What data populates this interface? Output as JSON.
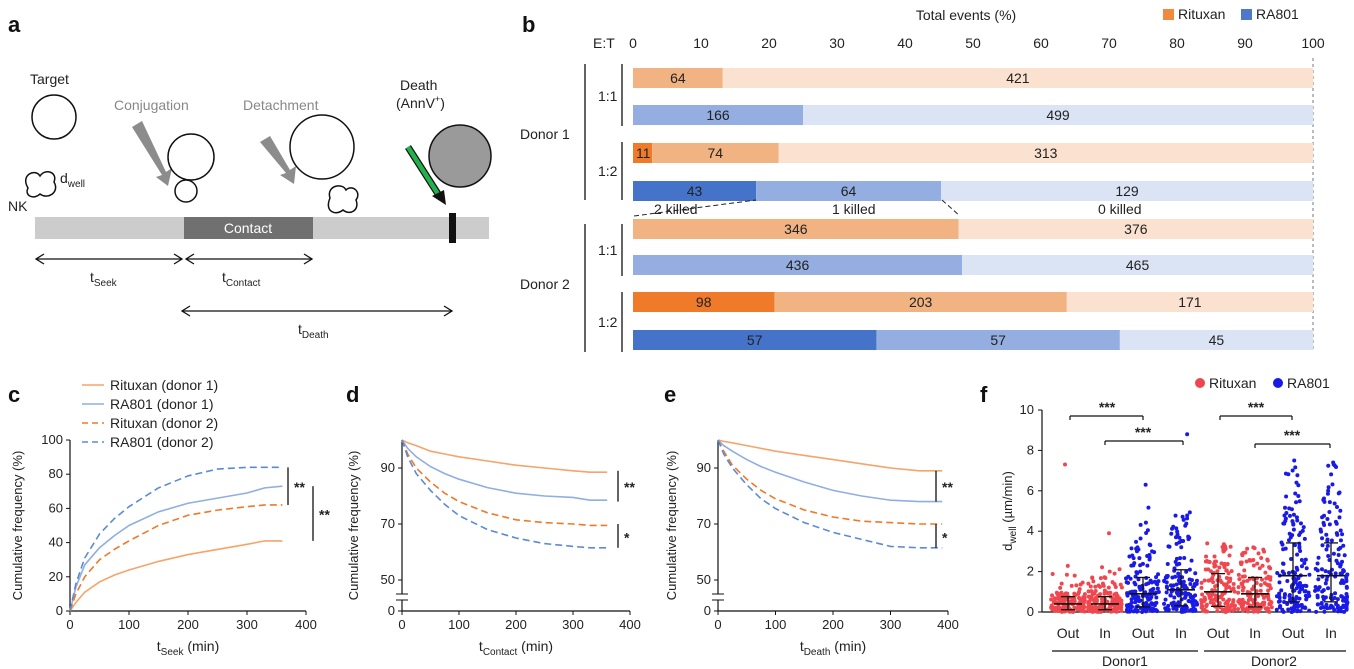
{
  "panels": [
    "a",
    "b",
    "c",
    "d",
    "e",
    "f"
  ],
  "schematic": {
    "target": "Target",
    "conjugation": "Conjugation",
    "detachment": "Detachment",
    "death_line1": "Death",
    "death_line2": "(AnnV",
    "death_sup": "+",
    "death_close": ")",
    "nk": "NK",
    "dwell_main": "d",
    "dwell_sub": "well",
    "contact": "Contact",
    "t_main": "t",
    "t_seek_sub": "Seek",
    "t_contact_sub": "Contact",
    "t_death_sub": "Death",
    "colors": {
      "bar": "#cccccc",
      "contact": "#707070",
      "arrow_gray": "#8c8c8c",
      "arrow_green": "#22b14c",
      "dead_cell": "#9a9a9a"
    }
  },
  "chart_b": {
    "title": "Total events (%)",
    "et_label": "E:T",
    "legend": [
      {
        "name": "Rituxan",
        "color": "#ef8a3e"
      },
      {
        "name": "RA801",
        "color": "#4f78c8"
      }
    ],
    "ticks": [
      "0",
      "10",
      "20",
      "30",
      "40",
      "50",
      "60",
      "70",
      "80",
      "90",
      "100"
    ],
    "donors": [
      "Donor 1",
      "Donor 2"
    ],
    "ratios": [
      "1:1",
      "1:2",
      "1:1",
      "1:2"
    ],
    "killed_labels": [
      "2 killed",
      "1 killed",
      "0 killed"
    ],
    "rows": [
      {
        "group": "Rituxan",
        "segments": [
          {
            "value": 64,
            "share": 13.2,
            "shade": "mid"
          },
          {
            "value": 421,
            "share": 86.8,
            "shade": "light"
          }
        ]
      },
      {
        "group": "RA801",
        "segments": [
          {
            "value": 166,
            "share": 25.0,
            "shade": "mid"
          },
          {
            "value": 499,
            "share": 75.0,
            "shade": "light"
          }
        ]
      },
      {
        "group": "Rituxan",
        "segments": [
          {
            "value": 11,
            "share": 2.8,
            "shade": "dark"
          },
          {
            "value": 74,
            "share": 18.6,
            "shade": "mid"
          },
          {
            "value": 313,
            "share": 78.6,
            "shade": "light"
          }
        ]
      },
      {
        "group": "RA801",
        "segments": [
          {
            "value": 43,
            "share": 18.1,
            "shade": "dark"
          },
          {
            "value": 64,
            "share": 27.2,
            "shade": "mid"
          },
          {
            "value": 129,
            "share": 54.7,
            "shade": "light"
          }
        ]
      },
      {
        "group": "Rituxan",
        "segments": [
          {
            "value": 346,
            "share": 47.9,
            "shade": "mid"
          },
          {
            "value": 376,
            "share": 52.1,
            "shade": "light"
          }
        ]
      },
      {
        "group": "RA801",
        "segments": [
          {
            "value": 436,
            "share": 48.4,
            "shade": "mid"
          },
          {
            "value": 465,
            "share": 51.6,
            "shade": "light"
          }
        ]
      },
      {
        "group": "Rituxan",
        "segments": [
          {
            "value": 98,
            "share": 20.8,
            "shade": "dark"
          },
          {
            "value": 203,
            "share": 43.0,
            "shade": "mid"
          },
          {
            "value": 171,
            "share": 36.2,
            "shade": "light"
          }
        ]
      },
      {
        "group": "RA801",
        "segments": [
          {
            "value": 57,
            "share": 35.8,
            "shade": "dark"
          },
          {
            "value": 57,
            "share": 35.8,
            "shade": "mid"
          },
          {
            "value": 45,
            "share": 28.4,
            "shade": "light"
          }
        ]
      }
    ]
  },
  "legend_cde": [
    {
      "name": "Rituxan (donor 1)",
      "color": "#f5a46a",
      "dash": false
    },
    {
      "name": "RA801 (donor 1)",
      "color": "#8faee3",
      "dash": false
    },
    {
      "name": "Rituxan (donor 2)",
      "color": "#ee7a28",
      "dash": true
    },
    {
      "name": "RA801 (donor 2)",
      "color": "#5b8ad6",
      "dash": true
    }
  ],
  "chart_data": [
    {
      "type": "line",
      "id": "c",
      "ylabel": "Cumulative frequency (%)",
      "xlabel_main": "t",
      "xlabel_sub": "Seek",
      "xlabel_unit": " (min)",
      "xlim": [
        0,
        400
      ],
      "ylim": [
        0,
        100
      ],
      "xticks": [
        0,
        100,
        200,
        300,
        400
      ],
      "yticks": [
        0,
        20,
        40,
        60,
        80,
        100
      ],
      "x": [
        0,
        10,
        25,
        50,
        75,
        100,
        150,
        200,
        250,
        300,
        330,
        360
      ],
      "series": [
        {
          "name": "Rituxan (donor 1)",
          "values": [
            0,
            5,
            11,
            17,
            21,
            24,
            29,
            33,
            36,
            39,
            41,
            41
          ]
        },
        {
          "name": "RA801 (donor 1)",
          "values": [
            0,
            14,
            27,
            37,
            44,
            50,
            58,
            63,
            66,
            69,
            72,
            73
          ]
        },
        {
          "name": "Rituxan (donor 2)",
          "values": [
            0,
            10,
            20,
            30,
            36,
            41,
            50,
            56,
            59,
            61,
            62,
            62
          ]
        },
        {
          "name": "RA801 (donor 2)",
          "values": [
            0,
            16,
            31,
            45,
            54,
            61,
            72,
            79,
            83,
            84,
            84,
            84
          ]
        }
      ],
      "significance": [
        "**",
        "**"
      ]
    },
    {
      "type": "line",
      "id": "d",
      "ylabel": "Cumulative frequency (%)",
      "xlabel_main": "t",
      "xlabel_sub": "Contact",
      "xlabel_unit": " (min)",
      "xlim": [
        0,
        400
      ],
      "ylim": [
        0,
        100
      ],
      "xticks": [
        0,
        100,
        200,
        300,
        400
      ],
      "ytick_labels": [
        "0",
        "50",
        "70",
        "90"
      ],
      "x": [
        0,
        10,
        25,
        50,
        75,
        100,
        150,
        200,
        250,
        300,
        330,
        360
      ],
      "series": [
        {
          "name": "Rituxan (donor 1)",
          "values": [
            100,
            99,
            98,
            96,
            95,
            94,
            92.5,
            91,
            90,
            89,
            88.5,
            88.5
          ]
        },
        {
          "name": "RA801 (donor 1)",
          "values": [
            100,
            97,
            94,
            90.5,
            88,
            86,
            83,
            81,
            80,
            79.5,
            78.5,
            78.5
          ]
        },
        {
          "name": "Rituxan (donor 2)",
          "values": [
            100,
            95,
            90,
            85,
            81,
            78,
            74,
            71.5,
            70.5,
            70,
            69.5,
            69.5
          ]
        },
        {
          "name": "RA801 (donor 2)",
          "values": [
            100,
            94,
            88,
            82,
            77,
            73,
            68,
            65,
            63,
            62,
            61.5,
            61.5
          ]
        }
      ],
      "significance": [
        "**",
        "*"
      ]
    },
    {
      "type": "line",
      "id": "e",
      "ylabel": "Cumulative frequency (%)",
      "xlabel_main": "t",
      "xlabel_sub": "Death",
      "xlabel_unit": " (min)",
      "xlim": [
        0,
        400
      ],
      "ylim": [
        0,
        100
      ],
      "xticks": [
        0,
        100,
        200,
        300,
        400
      ],
      "ytick_labels": [
        "0",
        "50",
        "70",
        "90"
      ],
      "x": [
        0,
        10,
        25,
        50,
        75,
        100,
        150,
        200,
        250,
        300,
        350,
        390
      ],
      "series": [
        {
          "name": "Rituxan (donor 1)",
          "values": [
            100,
            99.5,
            99,
            98,
            97,
            96,
            94.5,
            93,
            91.5,
            90,
            89,
            89
          ]
        },
        {
          "name": "RA801 (donor 1)",
          "values": [
            100,
            98,
            96,
            93,
            90.5,
            88.5,
            85,
            82,
            80,
            78.5,
            78,
            78
          ]
        },
        {
          "name": "Rituxan (donor 2)",
          "values": [
            100,
            96,
            91,
            86,
            82,
            79,
            75,
            72.5,
            71,
            70.5,
            70,
            70
          ]
        },
        {
          "name": "RA801 (donor 2)",
          "values": [
            100,
            95,
            90,
            84,
            79,
            75.5,
            70.5,
            67,
            64.5,
            62,
            61.5,
            61.5
          ]
        }
      ],
      "significance": [
        "**",
        "*"
      ]
    },
    {
      "type": "scatter",
      "id": "f",
      "ylabel_main": "d",
      "ylabel_sub": "well",
      "ylabel_unit": " (µm/min)",
      "ylim": [
        0,
        10
      ],
      "yticks": [
        0,
        2,
        4,
        6,
        8,
        10
      ],
      "categories": [
        "Out",
        "In",
        "Out",
        "In",
        "Out",
        "In",
        "Out",
        "In"
      ],
      "groups": [
        "Donor1",
        "Donor2"
      ],
      "legend": [
        {
          "name": "Rituxan",
          "color": "#f0474f"
        },
        {
          "name": "RA801",
          "color": "#1a1ae6"
        }
      ],
      "series_order": [
        "Rituxan",
        "Rituxan",
        "RA801",
        "RA801",
        "Rituxan",
        "Rituxan",
        "RA801",
        "RA801"
      ],
      "medians": [
        0.4,
        0.4,
        0.9,
        1.1,
        1.0,
        0.9,
        1.8,
        1.8
      ],
      "maxima": [
        7.3,
        3.9,
        6.3,
        8.8,
        3.4,
        3.2,
        7.5,
        7.4
      ],
      "significance": [
        "***",
        "***",
        "***",
        "***"
      ]
    }
  ]
}
